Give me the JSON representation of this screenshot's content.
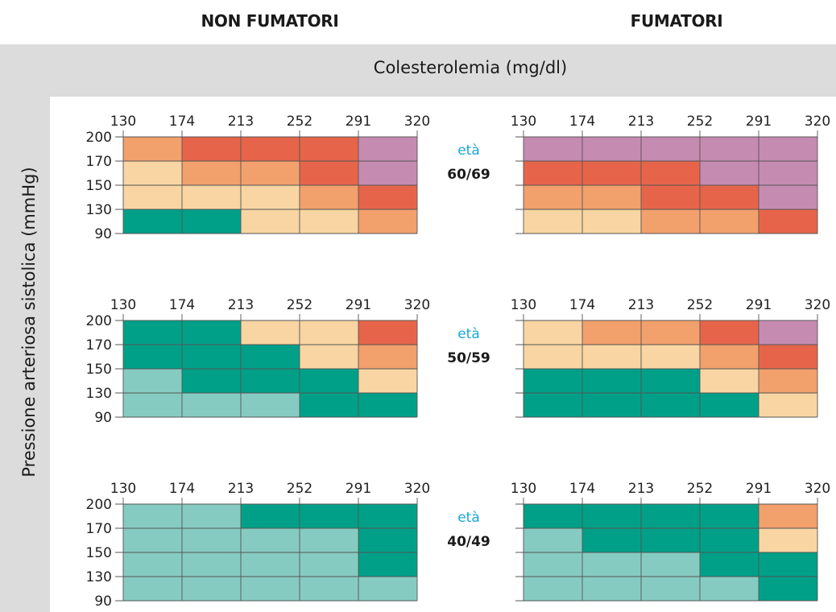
{
  "headers": {
    "left": "NON FUMATORI",
    "right": "FUMATORI"
  },
  "colesterolemia_label": "Colesterolemia (mg/dl)",
  "pressione_label": "Pressione arteriosa sistolica (mmHg)",
  "age_word": "età",
  "colors": {
    "lightTeal": "#86cbc1",
    "teal": "#00a088",
    "beige": "#f8d5a2",
    "orange": "#f2a06c",
    "red": "#e6654a",
    "purple": "#c68bb1"
  },
  "chart_data": {
    "type": "heatmap",
    "x_ticks": [
      "130",
      "174",
      "213",
      "252",
      "291",
      "320"
    ],
    "y_ticks": [
      "200",
      "170",
      "150",
      "130",
      "90"
    ],
    "groups": [
      {
        "age": "60/69",
        "non_smokers": [
          [
            "orange",
            "red",
            "red",
            "red",
            "purple"
          ],
          [
            "beige",
            "orange",
            "orange",
            "red",
            "purple"
          ],
          [
            "beige",
            "beige",
            "beige",
            "orange",
            "red"
          ],
          [
            "teal",
            "teal",
            "beige",
            "beige",
            "orange"
          ]
        ],
        "smokers": [
          [
            "purple",
            "purple",
            "purple",
            "purple",
            "purple"
          ],
          [
            "red",
            "red",
            "red",
            "purple",
            "purple"
          ],
          [
            "orange",
            "orange",
            "red",
            "red",
            "purple"
          ],
          [
            "beige",
            "beige",
            "orange",
            "orange",
            "red"
          ]
        ]
      },
      {
        "age": "50/59",
        "non_smokers": [
          [
            "teal",
            "teal",
            "beige",
            "beige",
            "red"
          ],
          [
            "teal",
            "teal",
            "teal",
            "beige",
            "orange"
          ],
          [
            "lightTeal",
            "teal",
            "teal",
            "teal",
            "beige"
          ],
          [
            "lightTeal",
            "lightTeal",
            "lightTeal",
            "teal",
            "teal"
          ]
        ],
        "smokers": [
          [
            "beige",
            "orange",
            "orange",
            "red",
            "purple"
          ],
          [
            "beige",
            "beige",
            "beige",
            "orange",
            "red"
          ],
          [
            "teal",
            "teal",
            "teal",
            "beige",
            "orange"
          ],
          [
            "teal",
            "teal",
            "teal",
            "teal",
            "beige"
          ]
        ]
      },
      {
        "age": "40/49",
        "non_smokers": [
          [
            "lightTeal",
            "lightTeal",
            "teal",
            "teal",
            "teal"
          ],
          [
            "lightTeal",
            "lightTeal",
            "lightTeal",
            "lightTeal",
            "teal"
          ],
          [
            "lightTeal",
            "lightTeal",
            "lightTeal",
            "lightTeal",
            "teal"
          ],
          [
            "lightTeal",
            "lightTeal",
            "lightTeal",
            "lightTeal",
            "lightTeal"
          ]
        ],
        "smokers": [
          [
            "teal",
            "teal",
            "teal",
            "teal",
            "orange"
          ],
          [
            "lightTeal",
            "teal",
            "teal",
            "teal",
            "beige"
          ],
          [
            "lightTeal",
            "lightTeal",
            "lightTeal",
            "teal",
            "teal"
          ],
          [
            "lightTeal",
            "lightTeal",
            "lightTeal",
            "lightTeal",
            "teal"
          ]
        ]
      }
    ]
  }
}
